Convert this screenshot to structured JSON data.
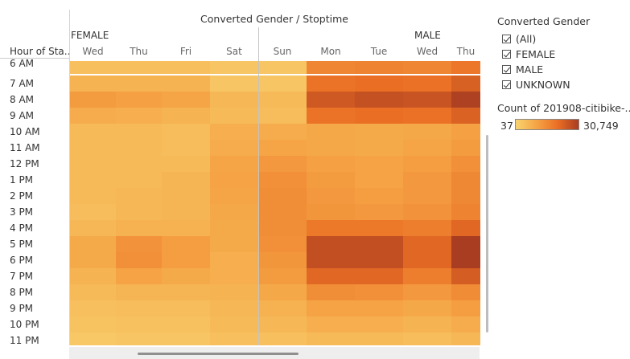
{
  "header": {
    "title": "Converted Gender / Stoptime"
  },
  "row_header": "Hour of Sta..",
  "chart_data": {
    "type": "heatmap",
    "title": "Converted Gender / Stoptime",
    "row_label": "Hour of Sta..",
    "groups": [
      "FEMALE",
      "MALE"
    ],
    "columns": [
      {
        "group": "FEMALE",
        "day": "Wed"
      },
      {
        "group": "FEMALE",
        "day": "Thu"
      },
      {
        "group": "FEMALE",
        "day": "Fri"
      },
      {
        "group": "FEMALE",
        "day": "Sat"
      },
      {
        "group": "FEMALE",
        "day": "Sun"
      },
      {
        "group": "MALE",
        "day": "Mon"
      },
      {
        "group": "MALE",
        "day": "Tue"
      },
      {
        "group": "MALE",
        "day": "Wed"
      },
      {
        "group": "MALE",
        "day": "Thu"
      }
    ],
    "rows": [
      "6 AM",
      "7 AM",
      "8 AM",
      "9 AM",
      "10 AM",
      "11 AM",
      "12 PM",
      "1 PM",
      "2 PM",
      "3 PM",
      "4 PM",
      "5 PM",
      "6 PM",
      "7 PM",
      "8 PM",
      "9 PM",
      "10 PM",
      "11 PM"
    ],
    "values": [
      [
        4500,
        4500,
        4500,
        3000,
        3000,
        16000,
        16500,
        16000,
        19000
      ],
      [
        7000,
        7000,
        7000,
        3000,
        3000,
        19500,
        20500,
        20000,
        23500
      ],
      [
        12000,
        11000,
        10000,
        6000,
        5500,
        25000,
        26500,
        26000,
        30000
      ],
      [
        8500,
        8000,
        7000,
        5500,
        5000,
        19500,
        20500,
        20000,
        23000
      ],
      [
        5500,
        5500,
        5000,
        8000,
        8500,
        9500,
        9000,
        9500,
        11000
      ],
      [
        5500,
        5500,
        5000,
        8500,
        10000,
        9500,
        9000,
        10000,
        12000
      ],
      [
        5500,
        5500,
        5500,
        10000,
        12500,
        11000,
        10500,
        11500,
        14000
      ],
      [
        5500,
        5500,
        6500,
        10500,
        14000,
        12000,
        10500,
        12500,
        15500
      ],
      [
        5500,
        6000,
        6500,
        10000,
        14500,
        12500,
        11500,
        12500,
        15500
      ],
      [
        5000,
        6000,
        6500,
        9500,
        14500,
        13000,
        12500,
        13500,
        16500
      ],
      [
        6000,
        7500,
        7500,
        9000,
        14500,
        18500,
        18500,
        17500,
        22000
      ],
      [
        9000,
        13500,
        11500,
        9000,
        14000,
        27000,
        27000,
        22000,
        30749
      ],
      [
        9000,
        14000,
        11500,
        8000,
        13000,
        27000,
        27000,
        22000,
        30749
      ],
      [
        7000,
        10500,
        9000,
        8000,
        12000,
        22000,
        22000,
        17500,
        24000
      ],
      [
        5500,
        6500,
        6500,
        7000,
        9500,
        14500,
        14000,
        12500,
        15000
      ],
      [
        4500,
        5000,
        5000,
        6000,
        7500,
        10500,
        10500,
        9500,
        11500
      ],
      [
        3500,
        4000,
        4000,
        5500,
        6000,
        8000,
        8000,
        7000,
        8500
      ],
      [
        2500,
        3000,
        3000,
        4500,
        4500,
        5500,
        5500,
        5000,
        6000
      ]
    ],
    "color_scale": {
      "min": 37,
      "max": 30749,
      "stops": [
        "#f8d36f",
        "#f5a445",
        "#ea6e24",
        "#a93d21"
      ]
    }
  },
  "legend": {
    "title": "Converted Gender",
    "items": [
      {
        "label": "(All)",
        "checked": true
      },
      {
        "label": "FEMALE",
        "checked": true
      },
      {
        "label": "MALE",
        "checked": true
      },
      {
        "label": "UNKNOWN",
        "checked": true
      }
    ]
  },
  "color_legend": {
    "title": "Count of 201908-citibike-..",
    "min_label": "37",
    "max_label": "30,749"
  }
}
